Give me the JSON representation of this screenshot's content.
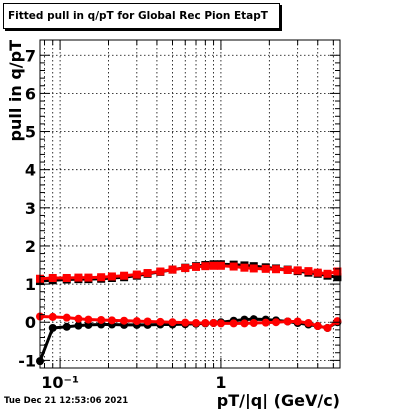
{
  "chart_data": {
    "type": "scatter",
    "title": "Fitted pull in q/pT for Global Rec Pion EtapT",
    "xlabel": "pT/|q| (GeV/c)",
    "ylabel": "pull in q/pT",
    "x_scale": "log",
    "xlim": [
      0.075,
      5.5
    ],
    "ylim": [
      -1.2,
      7.4
    ],
    "x_ticks": [
      {
        "value": 0.1,
        "label": "10⁻¹"
      },
      {
        "value": 1,
        "label": "1"
      }
    ],
    "y_ticks": [
      -1,
      0,
      1,
      2,
      3,
      4,
      5,
      6,
      7
    ],
    "grid": true,
    "colors": {
      "black_series": "#000000",
      "red_series": "#ff0000"
    },
    "series": [
      {
        "color": "#000000",
        "marker": "square",
        "x": [
          0.075,
          0.09,
          0.11,
          0.13,
          0.15,
          0.18,
          0.21,
          0.25,
          0.3,
          0.35,
          0.42,
          0.5,
          0.6,
          0.7,
          0.8,
          0.9,
          1.0,
          1.2,
          1.4,
          1.6,
          1.9,
          2.2,
          2.6,
          3.0,
          3.5,
          4.0,
          4.6,
          5.3
        ],
        "y": [
          1.08,
          1.1,
          1.12,
          1.13,
          1.13,
          1.14,
          1.16,
          1.18,
          1.22,
          1.27,
          1.32,
          1.38,
          1.43,
          1.47,
          1.5,
          1.52,
          1.52,
          1.51,
          1.49,
          1.47,
          1.44,
          1.41,
          1.38,
          1.34,
          1.3,
          1.27,
          1.22,
          1.18
        ]
      },
      {
        "color": "#ff0000",
        "marker": "square",
        "x": [
          0.075,
          0.09,
          0.11,
          0.13,
          0.15,
          0.18,
          0.21,
          0.25,
          0.3,
          0.35,
          0.42,
          0.5,
          0.6,
          0.7,
          0.8,
          0.9,
          1.0,
          1.2,
          1.4,
          1.6,
          1.9,
          2.2,
          2.6,
          3.0,
          3.5,
          4.0,
          4.6,
          5.3
        ],
        "y": [
          1.14,
          1.16,
          1.16,
          1.17,
          1.17,
          1.18,
          1.2,
          1.22,
          1.25,
          1.29,
          1.33,
          1.38,
          1.42,
          1.45,
          1.47,
          1.48,
          1.48,
          1.46,
          1.43,
          1.41,
          1.4,
          1.39,
          1.37,
          1.36,
          1.34,
          1.3,
          1.27,
          1.33
        ]
      },
      {
        "color": "#000000",
        "marker": "circle",
        "x": [
          0.075,
          0.09,
          0.11,
          0.13,
          0.15,
          0.18,
          0.21,
          0.25,
          0.3,
          0.35,
          0.42,
          0.5,
          0.6,
          0.7,
          0.8,
          0.9,
          1.0,
          1.2,
          1.4,
          1.6,
          1.9,
          2.2,
          2.6,
          3.0,
          3.5,
          4.0,
          4.6,
          5.3
        ],
        "y": [
          -1.02,
          -0.15,
          -0.12,
          -0.09,
          -0.07,
          -0.06,
          -0.06,
          -0.07,
          -0.07,
          -0.07,
          -0.06,
          -0.06,
          -0.05,
          -0.04,
          -0.03,
          -0.02,
          0.0,
          0.04,
          0.07,
          0.08,
          0.07,
          0.05,
          0.02,
          -0.02,
          -0.06,
          -0.1,
          -0.15,
          0.0
        ]
      },
      {
        "color": "#ff0000",
        "marker": "circle",
        "x": [
          0.075,
          0.09,
          0.11,
          0.13,
          0.15,
          0.18,
          0.21,
          0.25,
          0.3,
          0.35,
          0.42,
          0.5,
          0.6,
          0.7,
          0.8,
          0.9,
          1.0,
          1.2,
          1.4,
          1.6,
          1.9,
          2.2,
          2.6,
          3.0,
          3.5,
          4.0,
          4.6,
          5.3
        ],
        "y": [
          0.15,
          0.14,
          0.12,
          0.09,
          0.07,
          0.06,
          0.05,
          0.04,
          0.03,
          0.02,
          0.01,
          0.0,
          -0.01,
          -0.02,
          -0.02,
          -0.02,
          -0.03,
          -0.03,
          -0.03,
          -0.02,
          -0.01,
          0.0,
          0.02,
          0.02,
          -0.02,
          -0.1,
          -0.15,
          0.03
        ]
      }
    ]
  },
  "timestamp": "Tue Dec 21 12:53:06 2021"
}
